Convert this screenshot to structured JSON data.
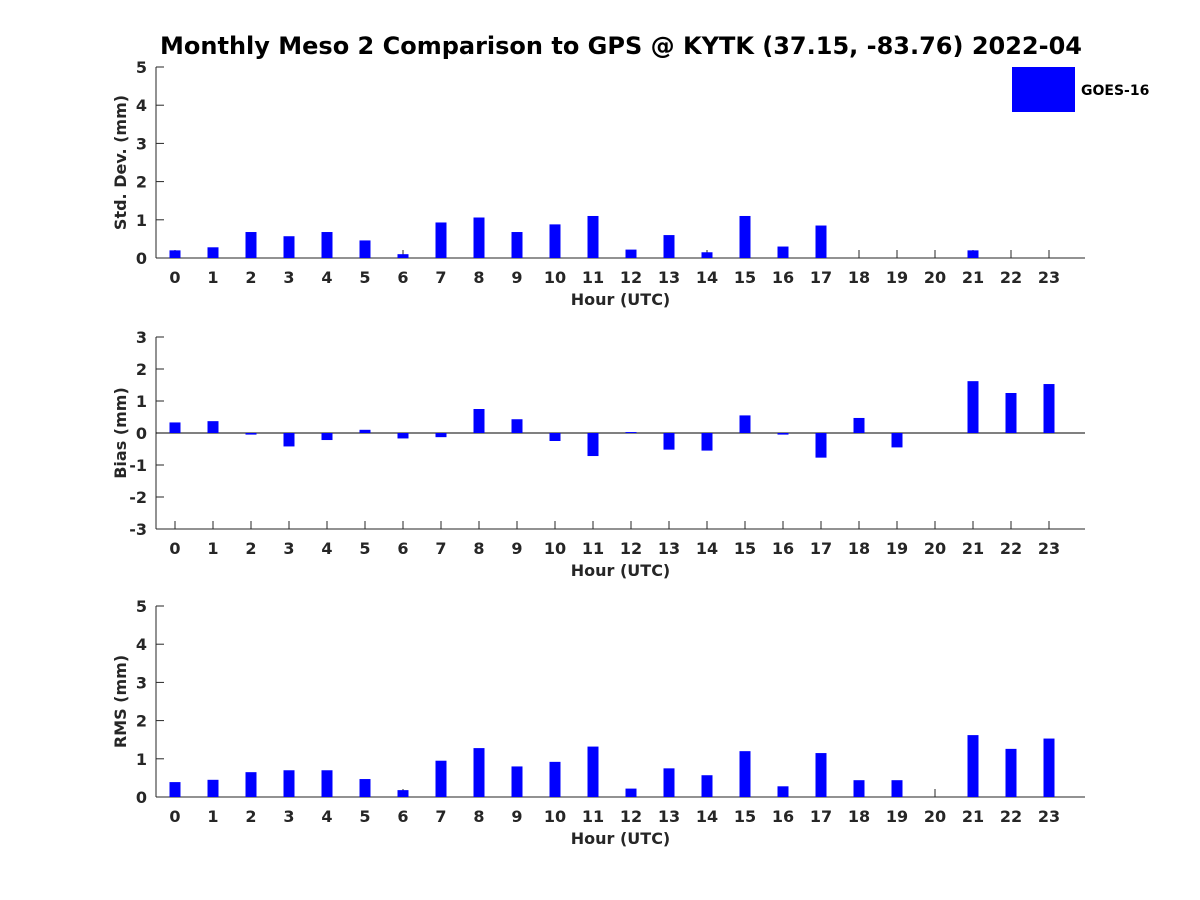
{
  "figure": {
    "title": "Monthly Meso 2 Comparison to GPS @ KYTK (37.15, -83.76) 2022-04",
    "legend": {
      "label": "GOES-16",
      "color": "#0000ff",
      "placement": "top-right"
    }
  },
  "chart_data": [
    {
      "type": "bar",
      "xlabel": "Hour (UTC)",
      "ylabel": "Std. Dev. (mm)",
      "ylim": [
        0,
        5
      ],
      "yticks": [
        0,
        1,
        2,
        3,
        4,
        5
      ],
      "categories": [
        0,
        1,
        2,
        3,
        4,
        5,
        6,
        7,
        8,
        9,
        10,
        11,
        12,
        13,
        14,
        15,
        16,
        17,
        18,
        19,
        20,
        21,
        22,
        23
      ],
      "series": [
        {
          "name": "GOES-16",
          "color": "#0000ff",
          "values": [
            0.2,
            0.28,
            0.68,
            0.57,
            0.68,
            0.46,
            0.1,
            0.93,
            1.06,
            0.68,
            0.88,
            1.1,
            0.22,
            0.6,
            0.15,
            1.1,
            0.3,
            0.85,
            0,
            0,
            0,
            0.2,
            0,
            0
          ]
        }
      ]
    },
    {
      "type": "bar",
      "xlabel": "Hour (UTC)",
      "ylabel": "Bias (mm)",
      "ylim": [
        -3,
        3
      ],
      "yticks": [
        -3,
        -2,
        -1,
        0,
        1,
        2,
        3
      ],
      "categories": [
        0,
        1,
        2,
        3,
        4,
        5,
        6,
        7,
        8,
        9,
        10,
        11,
        12,
        13,
        14,
        15,
        16,
        17,
        18,
        19,
        20,
        21,
        22,
        23
      ],
      "series": [
        {
          "name": "GOES-16",
          "color": "#0000ff",
          "values": [
            0.33,
            0.37,
            -0.05,
            -0.42,
            -0.22,
            0.1,
            -0.17,
            -0.13,
            0.75,
            0.43,
            -0.25,
            -0.72,
            0.03,
            -0.52,
            -0.55,
            0.55,
            -0.05,
            -0.77,
            0.47,
            -0.45,
            0,
            1.62,
            1.25,
            1.53
          ]
        }
      ]
    },
    {
      "type": "bar",
      "xlabel": "Hour (UTC)",
      "ylabel": "RMS (mm)",
      "ylim": [
        0,
        5
      ],
      "yticks": [
        0,
        1,
        2,
        3,
        4,
        5
      ],
      "categories": [
        0,
        1,
        2,
        3,
        4,
        5,
        6,
        7,
        8,
        9,
        10,
        11,
        12,
        13,
        14,
        15,
        16,
        17,
        18,
        19,
        20,
        21,
        22,
        23
      ],
      "series": [
        {
          "name": "GOES-16",
          "color": "#0000ff",
          "values": [
            0.39,
            0.45,
            0.65,
            0.7,
            0.7,
            0.47,
            0.18,
            0.95,
            1.28,
            0.8,
            0.92,
            1.32,
            0.22,
            0.75,
            0.57,
            1.2,
            0.28,
            1.15,
            0.44,
            0.44,
            0,
            1.62,
            1.26,
            1.53
          ]
        }
      ]
    }
  ]
}
